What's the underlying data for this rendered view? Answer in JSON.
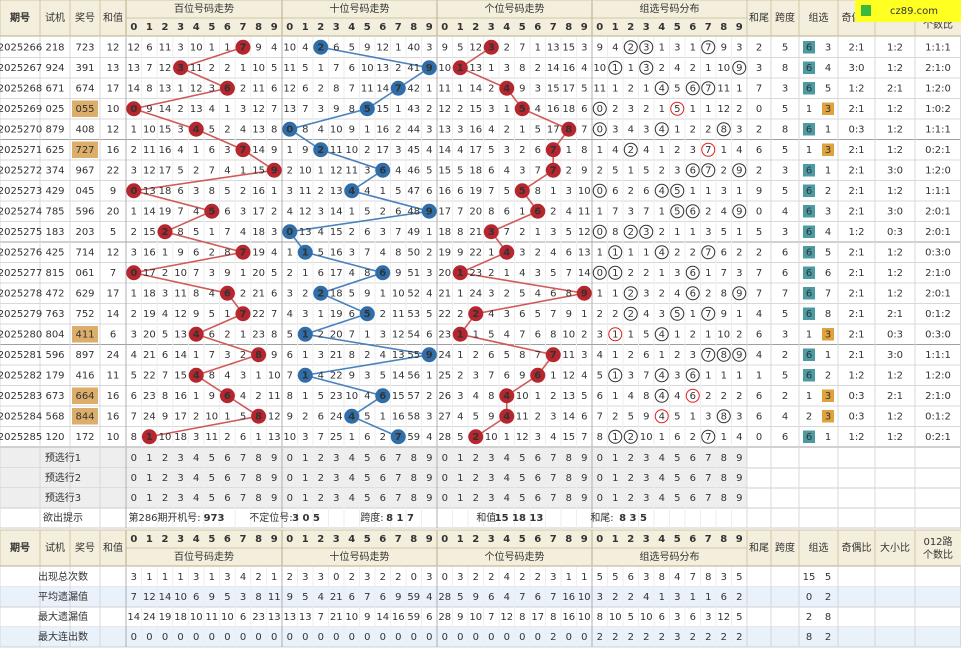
{
  "brand": "cz89.com",
  "header": {
    "period": "期号",
    "trial": "试机",
    "prize": "奖号",
    "sum": "和值",
    "sections": [
      "百位号码走势",
      "十位号码走势",
      "个位号码走势",
      "组选号码分布"
    ],
    "digits": [
      0,
      1,
      2,
      3,
      4,
      5,
      6,
      7,
      8,
      9
    ],
    "sum_tail": "和尾",
    "span": "跨度",
    "group": "组选",
    "odd_even": "奇偶比",
    "big_small": "大小比",
    "route": [
      "012路",
      "个数比"
    ]
  },
  "rows": [
    {
      "period": "2025266",
      "trial": "218",
      "prize": "723",
      "sum": 12,
      "hundreds": [
        12,
        6,
        11,
        3,
        10,
        1,
        1,
        7,
        9,
        4
      ],
      "tens": [
        10,
        4,
        2,
        6,
        5,
        9,
        12,
        1,
        40,
        3
      ],
      "units": [
        9,
        5,
        12,
        3,
        2,
        7,
        1,
        13,
        15,
        3
      ],
      "group_dist": [
        9,
        4,
        2,
        3,
        1,
        3,
        1,
        7,
        9,
        3
      ],
      "sum_tail": 2,
      "span": 5,
      "group_omission": [
        6,
        3
      ],
      "odd_even": "2:1",
      "big_small": "1:2",
      "route": "1:1:1"
    },
    {
      "period": "2025267",
      "trial": "924",
      "prize": "391",
      "sum": 13,
      "hundreds": [
        13,
        7,
        12,
        3,
        11,
        2,
        2,
        1,
        10,
        5
      ],
      "tens": [
        11,
        5,
        1,
        7,
        6,
        10,
        13,
        2,
        41,
        9
      ],
      "units": [
        10,
        1,
        13,
        1,
        3,
        8,
        2,
        14,
        16,
        4
      ],
      "group_dist": [
        10,
        1,
        1,
        3,
        2,
        4,
        2,
        1,
        10,
        9
      ],
      "sum_tail": 3,
      "span": 8,
      "group_omission": [
        6,
        4
      ],
      "odd_even": "3:0",
      "big_small": "1:2",
      "route": "2:1:0"
    },
    {
      "period": "2025268",
      "trial": "671",
      "prize": "674",
      "sum": 17,
      "hundreds": [
        14,
        8,
        13,
        1,
        12,
        3,
        6,
        2,
        11,
        6
      ],
      "tens": [
        12,
        6,
        2,
        8,
        7,
        11,
        14,
        7,
        42,
        1
      ],
      "units": [
        11,
        1,
        14,
        2,
        4,
        9,
        3,
        15,
        17,
        5
      ],
      "group_dist": [
        11,
        1,
        2,
        1,
        4,
        5,
        6,
        7,
        11,
        1
      ],
      "sum_tail": 7,
      "span": 3,
      "group_omission": [
        6,
        5
      ],
      "odd_even": "1:2",
      "big_small": "2:1",
      "route": "1:2:0"
    },
    {
      "period": "2025269",
      "trial": "025",
      "prize": "055",
      "sum": 10,
      "hundreds": [
        0,
        9,
        14,
        2,
        13,
        4,
        1,
        3,
        12,
        7
      ],
      "tens": [
        13,
        7,
        3,
        9,
        8,
        5,
        15,
        1,
        43,
        2
      ],
      "units": [
        12,
        2,
        15,
        3,
        1,
        5,
        4,
        16,
        18,
        6
      ],
      "group_dist": [
        0,
        2,
        3,
        2,
        1,
        5,
        1,
        1,
        12,
        2
      ],
      "sum_tail": 0,
      "span": 5,
      "group_omission": [
        1,
        3
      ],
      "odd_even": "2:1",
      "big_small": "1:2",
      "route": "1:0:2"
    },
    {
      "period": "2025270",
      "trial": "879",
      "prize": "408",
      "sum": 12,
      "hundreds": [
        1,
        10,
        15,
        3,
        4,
        5,
        2,
        4,
        13,
        8
      ],
      "tens": [
        0,
        8,
        4,
        10,
        9,
        1,
        16,
        2,
        44,
        3
      ],
      "units": [
        13,
        3,
        16,
        4,
        2,
        1,
        5,
        17,
        8,
        7
      ],
      "group_dist": [
        0,
        3,
        4,
        3,
        4,
        1,
        2,
        2,
        8,
        3
      ],
      "sum_tail": 2,
      "span": 8,
      "group_omission": [
        6,
        1
      ],
      "odd_even": "0:3",
      "big_small": "1:2",
      "route": "1:1:1"
    },
    {
      "period": "2025271",
      "trial": "625",
      "prize": "727",
      "sum": 16,
      "hundreds": [
        2,
        11,
        16,
        4,
        1,
        6,
        3,
        7,
        14,
        9
      ],
      "tens": [
        1,
        9,
        2,
        11,
        10,
        2,
        17,
        3,
        45,
        4
      ],
      "units": [
        14,
        4,
        17,
        5,
        3,
        2,
        6,
        7,
        1,
        8
      ],
      "group_dist": [
        1,
        4,
        2,
        4,
        1,
        2,
        3,
        7,
        1,
        4
      ],
      "sum_tail": 6,
      "span": 5,
      "group_omission": [
        1,
        3
      ],
      "odd_even": "2:1",
      "big_small": "1:2",
      "route": "0:2:1"
    },
    {
      "period": "2025272",
      "trial": "374",
      "prize": "967",
      "sum": 22,
      "hundreds": [
        3,
        12,
        17,
        5,
        2,
        7,
        4,
        1,
        15,
        9
      ],
      "tens": [
        2,
        10,
        1,
        12,
        11,
        3,
        6,
        4,
        46,
        5
      ],
      "units": [
        15,
        5,
        18,
        6,
        4,
        3,
        7,
        7,
        2,
        9
      ],
      "group_dist": [
        2,
        5,
        1,
        5,
        2,
        3,
        6,
        7,
        2,
        9
      ],
      "sum_tail": 2,
      "span": 3,
      "group_omission": [
        6,
        1
      ],
      "odd_even": "2:1",
      "big_small": "3:0",
      "route": "1:2:0"
    },
    {
      "period": "2025273",
      "trial": "429",
      "prize": "045",
      "sum": 9,
      "hundreds": [
        0,
        13,
        18,
        6,
        3,
        8,
        5,
        2,
        16,
        1
      ],
      "tens": [
        3,
        11,
        2,
        13,
        4,
        4,
        1,
        5,
        47,
        6
      ],
      "units": [
        16,
        6,
        19,
        7,
        5,
        5,
        8,
        1,
        3,
        10
      ],
      "group_dist": [
        0,
        6,
        2,
        6,
        4,
        5,
        1,
        1,
        3,
        1
      ],
      "sum_tail": 9,
      "span": 5,
      "group_omission": [
        6,
        2
      ],
      "odd_even": "2:1",
      "big_small": "1:2",
      "route": "1:1:1"
    },
    {
      "period": "2025274",
      "trial": "785",
      "prize": "596",
      "sum": 20,
      "hundreds": [
        1,
        14,
        19,
        7,
        4,
        5,
        6,
        3,
        17,
        2
      ],
      "tens": [
        4,
        12,
        3,
        14,
        1,
        5,
        2,
        6,
        48,
        9
      ],
      "units": [
        17,
        7,
        20,
        8,
        6,
        1,
        6,
        2,
        4,
        11
      ],
      "group_dist": [
        1,
        7,
        3,
        7,
        1,
        5,
        6,
        2,
        4,
        9
      ],
      "sum_tail": 0,
      "span": 4,
      "group_omission": [
        6,
        3
      ],
      "odd_even": "2:1",
      "big_small": "3:0",
      "route": "2:0:1"
    },
    {
      "period": "2025275",
      "trial": "183",
      "prize": "203",
      "sum": 5,
      "hundreds": [
        2,
        15,
        2,
        8,
        5,
        1,
        7,
        4,
        18,
        3
      ],
      "tens": [
        0,
        13,
        4,
        15,
        2,
        6,
        3,
        7,
        49,
        1
      ],
      "units": [
        18,
        8,
        21,
        3,
        7,
        2,
        1,
        3,
        5,
        12
      ],
      "group_dist": [
        0,
        8,
        2,
        3,
        2,
        1,
        1,
        3,
        5,
        1
      ],
      "sum_tail": 5,
      "span": 3,
      "group_omission": [
        6,
        4
      ],
      "odd_even": "1:2",
      "big_small": "0:3",
      "route": "2:0:1"
    },
    {
      "period": "2025276",
      "trial": "425",
      "prize": "714",
      "sum": 12,
      "hundreds": [
        3,
        16,
        1,
        9,
        6,
        2,
        8,
        7,
        19,
        4
      ],
      "tens": [
        1,
        1,
        5,
        16,
        3,
        7,
        4,
        8,
        50,
        2
      ],
      "units": [
        19,
        9,
        22,
        1,
        4,
        3,
        2,
        4,
        6,
        13
      ],
      "group_dist": [
        1,
        1,
        1,
        1,
        4,
        2,
        2,
        7,
        6,
        2
      ],
      "sum_tail": 2,
      "span": 6,
      "group_omission": [
        6,
        5
      ],
      "odd_even": "2:1",
      "big_small": "1:2",
      "route": "0:3:0"
    },
    {
      "period": "2025277",
      "trial": "815",
      "prize": "061",
      "sum": 7,
      "hundreds": [
        0,
        17,
        2,
        10,
        7,
        3,
        9,
        1,
        20,
        5
      ],
      "tens": [
        2,
        1,
        6,
        17,
        4,
        8,
        6,
        9,
        51,
        3
      ],
      "units": [
        20,
        1,
        23,
        2,
        1,
        4,
        3,
        5,
        7,
        14
      ],
      "group_dist": [
        0,
        1,
        2,
        2,
        1,
        3,
        6,
        1,
        7,
        3
      ],
      "sum_tail": 7,
      "span": 6,
      "group_omission": [
        6,
        6
      ],
      "odd_even": "2:1",
      "big_small": "1:2",
      "route": "2:1:0"
    },
    {
      "period": "2025278",
      "trial": "472",
      "prize": "629",
      "sum": 17,
      "hundreds": [
        1,
        18,
        3,
        11,
        8,
        4,
        6,
        2,
        21,
        6
      ],
      "tens": [
        3,
        2,
        2,
        18,
        5,
        9,
        1,
        10,
        52,
        4
      ],
      "units": [
        21,
        1,
        24,
        3,
        2,
        5,
        4,
        6,
        8,
        9
      ],
      "group_dist": [
        1,
        1,
        2,
        3,
        2,
        4,
        6,
        2,
        8,
        9
      ],
      "sum_tail": 7,
      "span": 7,
      "group_omission": [
        6,
        7
      ],
      "odd_even": "2:1",
      "big_small": "1:2",
      "route": "2:0:1"
    },
    {
      "period": "2025279",
      "trial": "763",
      "prize": "752",
      "sum": 14,
      "hundreds": [
        2,
        19,
        4,
        12,
        9,
        5,
        1,
        7,
        22,
        7
      ],
      "tens": [
        4,
        3,
        1,
        19,
        6,
        5,
        2,
        11,
        53,
        5
      ],
      "units": [
        22,
        2,
        2,
        4,
        3,
        6,
        5,
        7,
        9,
        1
      ],
      "group_dist": [
        2,
        2,
        2,
        4,
        3,
        5,
        1,
        7,
        9,
        1
      ],
      "sum_tail": 4,
      "span": 5,
      "group_omission": [
        6,
        8
      ],
      "odd_even": "2:1",
      "big_small": "2:1",
      "route": "0:1:2"
    },
    {
      "period": "2025280",
      "trial": "804",
      "prize": "411",
      "sum": 6,
      "hundreds": [
        3,
        20,
        5,
        13,
        4,
        6,
        2,
        1,
        23,
        8
      ],
      "tens": [
        5,
        1,
        2,
        20,
        7,
        1,
        3,
        12,
        54,
        6
      ],
      "units": [
        23,
        1,
        1,
        5,
        4,
        7,
        6,
        8,
        10,
        2
      ],
      "group_dist": [
        3,
        1,
        1,
        5,
        4,
        1,
        2,
        1,
        10,
        2
      ],
      "sum_tail": 6,
      "span": 3,
      "group_omission": [
        1,
        3
      ],
      "odd_even": "2:1",
      "big_small": "0:3",
      "route": "0:3:0"
    },
    {
      "period": "2025281",
      "trial": "596",
      "prize": "897",
      "sum": 24,
      "hundreds": [
        4,
        21,
        6,
        14,
        1,
        7,
        3,
        2,
        8,
        9
      ],
      "tens": [
        6,
        1,
        3,
        21,
        8,
        2,
        4,
        13,
        55,
        9
      ],
      "units": [
        24,
        1,
        2,
        6,
        5,
        8,
        7,
        7,
        11,
        3
      ],
      "group_dist": [
        4,
        1,
        2,
        6,
        1,
        2,
        3,
        7,
        8,
        9
      ],
      "sum_tail": 4,
      "span": 2,
      "group_omission": [
        6,
        1
      ],
      "odd_even": "2:1",
      "big_small": "3:0",
      "route": "1:1:1"
    },
    {
      "period": "2025282",
      "trial": "179",
      "prize": "416",
      "sum": 11,
      "hundreds": [
        5,
        22,
        7,
        15,
        4,
        8,
        4,
        3,
        1,
        10
      ],
      "tens": [
        7,
        1,
        4,
        22,
        9,
        3,
        5,
        14,
        56,
        1
      ],
      "units": [
        25,
        2,
        3,
        7,
        6,
        9,
        6,
        1,
        12,
        4
      ],
      "group_dist": [
        5,
        1,
        3,
        7,
        4,
        3,
        6,
        1,
        1,
        1
      ],
      "sum_tail": 1,
      "span": 5,
      "group_omission": [
        6,
        2
      ],
      "odd_even": "1:2",
      "big_small": "1:2",
      "route": "1:2:0"
    },
    {
      "period": "2025283",
      "trial": "673",
      "prize": "664",
      "sum": 16,
      "hundreds": [
        6,
        23,
        8,
        16,
        1,
        9,
        6,
        4,
        2,
        11
      ],
      "tens": [
        8,
        1,
        5,
        23,
        10,
        4,
        6,
        15,
        57,
        2
      ],
      "units": [
        26,
        3,
        4,
        8,
        4,
        10,
        1,
        2,
        13,
        5
      ],
      "group_dist": [
        6,
        1,
        4,
        8,
        4,
        4,
        6,
        2,
        2,
        2
      ],
      "sum_tail": 6,
      "span": 2,
      "group_omission": [
        1,
        3
      ],
      "odd_even": "0:3",
      "big_small": "2:1",
      "route": "2:1:0"
    },
    {
      "period": "2025284",
      "trial": "568",
      "prize": "844",
      "sum": 16,
      "hundreds": [
        7,
        24,
        9,
        17,
        2,
        10,
        1,
        5,
        8,
        12
      ],
      "tens": [
        9,
        2,
        6,
        24,
        4,
        5,
        1,
        16,
        58,
        3
      ],
      "units": [
        27,
        4,
        5,
        9,
        4,
        11,
        2,
        3,
        14,
        6
      ],
      "group_dist": [
        7,
        2,
        5,
        9,
        4,
        5,
        1,
        3,
        8,
        3
      ],
      "sum_tail": 6,
      "span": 4,
      "group_omission": [
        2,
        3
      ],
      "odd_even": "0:3",
      "big_small": "1:2",
      "route": "0:1:2"
    },
    {
      "period": "2025285",
      "trial": "120",
      "prize": "172",
      "sum": 10,
      "hundreds": [
        8,
        1,
        10,
        18,
        3,
        11,
        2,
        6,
        1,
        13
      ],
      "tens": [
        10,
        3,
        7,
        25,
        1,
        6,
        2,
        7,
        59,
        4
      ],
      "units": [
        28,
        5,
        2,
        10,
        1,
        12,
        3,
        4,
        15,
        7
      ],
      "group_dist": [
        8,
        1,
        2,
        10,
        1,
        6,
        2,
        7,
        1,
        4
      ],
      "sum_tail": 0,
      "span": 6,
      "group_omission": [
        6,
        1
      ],
      "odd_even": "1:2",
      "big_small": "1:2",
      "route": "0:2:1"
    }
  ],
  "preselect": [
    "预选行1",
    "预选行2",
    "预选行3"
  ],
  "hint": {
    "label": "欲出提示",
    "period": "第286期",
    "trial_label": "开机号:",
    "trial": "973",
    "fixed_label": "不定位号:",
    "fixed": "3 0 5",
    "span_label": "跨度:",
    "span": "8 1 7",
    "sum_label": "和值:",
    "sum": "15 18 13",
    "tail_label": "和尾:",
    "tail": "8 3 5"
  },
  "stats": [
    {
      "label": "出现总次数",
      "hundreds": [
        3,
        1,
        1,
        1,
        3,
        1,
        3,
        4,
        2,
        1
      ],
      "tens": [
        2,
        3,
        3,
        0,
        2,
        3,
        2,
        2,
        0,
        3
      ],
      "units": [
        0,
        3,
        2,
        2,
        4,
        2,
        2,
        3,
        1,
        1
      ],
      "group_dist": [
        5,
        5,
        6,
        3,
        8,
        4,
        7,
        8,
        3,
        5
      ],
      "group": [
        15,
        5
      ]
    },
    {
      "label": "平均遗漏值",
      "hundreds": [
        7,
        12,
        14,
        10,
        6,
        9,
        5,
        3,
        8,
        11
      ],
      "tens": [
        9,
        5,
        4,
        21,
        6,
        7,
        6,
        9,
        59,
        4
      ],
      "units": [
        28,
        5,
        9,
        6,
        4,
        7,
        6,
        7,
        16,
        10
      ],
      "group_dist": [
        3,
        2,
        2,
        4,
        1,
        3,
        1,
        1,
        6,
        2
      ],
      "group": [
        0,
        2
      ]
    },
    {
      "label": "最大遗漏值",
      "hundreds": [
        14,
        24,
        19,
        18,
        10,
        11,
        10,
        6,
        23,
        13
      ],
      "tens": [
        13,
        13,
        7,
        21,
        10,
        9,
        14,
        16,
        59,
        6
      ],
      "units": [
        28,
        9,
        10,
        7,
        12,
        8,
        17,
        8,
        16,
        10
      ],
      "group_dist": [
        8,
        10,
        5,
        10,
        6,
        3,
        6,
        3,
        12,
        5
      ],
      "group": [
        2,
        8
      ]
    },
    {
      "label": "最大连出数",
      "hundreds": [
        0,
        0,
        0,
        0,
        0,
        0,
        0,
        0,
        0,
        0
      ],
      "tens": [
        0,
        0,
        0,
        0,
        0,
        0,
        0,
        0,
        0,
        0
      ],
      "units": [
        0,
        0,
        0,
        0,
        0,
        0,
        0,
        2,
        0,
        0
      ],
      "group_dist": [
        2,
        2,
        2,
        2,
        2,
        3,
        2,
        2,
        2,
        2
      ],
      "group": [
        8,
        2
      ]
    }
  ]
}
